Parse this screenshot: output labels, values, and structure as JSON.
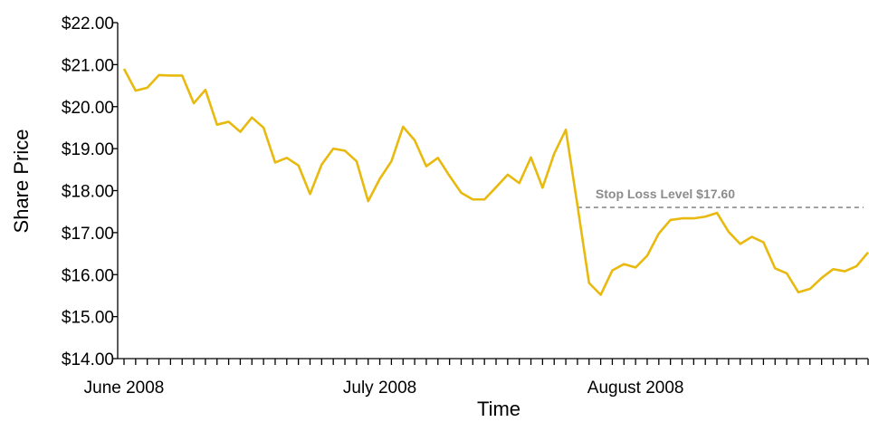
{
  "chart_data": {
    "type": "line",
    "xlabel": "Time",
    "ylabel": "Share Price",
    "ylim": [
      14,
      22
    ],
    "y_ticks": [
      "$14.00",
      "$15.00",
      "$16.00",
      "$17.00",
      "$18.00",
      "$19.00",
      "$20.00",
      "$21.00",
      "$22.00"
    ],
    "x_month_labels": [
      {
        "label": "June 2008",
        "index": 0
      },
      {
        "label": "July 2008",
        "index": 22
      },
      {
        "label": "August 2008",
        "index": 44
      }
    ],
    "grid": false,
    "legend": "none",
    "series": [
      {
        "values": [
          20.9,
          20.38,
          20.45,
          20.75,
          20.74,
          20.74,
          20.08,
          20.4,
          19.57,
          19.64,
          19.4,
          19.74,
          19.5,
          18.67,
          18.78,
          18.6,
          17.92,
          18.62,
          19.0,
          18.95,
          18.7,
          17.75,
          18.28,
          18.7,
          19.52,
          19.2,
          18.58,
          18.78,
          18.35,
          17.95,
          17.79,
          17.79,
          18.08,
          18.38,
          18.18,
          18.79,
          18.07,
          18.88,
          19.45,
          17.65,
          15.8,
          15.52,
          16.1,
          16.25,
          16.17,
          16.45,
          16.98,
          17.3,
          17.34,
          17.34,
          17.38,
          17.47,
          17.02,
          16.73,
          16.9,
          16.77,
          16.15,
          16.03,
          15.58,
          15.66,
          15.92,
          16.13,
          16.08,
          16.2,
          16.53
        ],
        "color": "#E8B90E"
      }
    ],
    "annotations": [
      {
        "label": "Stop Loss Level $17.60",
        "value": 17.6,
        "start_index": 39,
        "color": "#8C8C8C"
      }
    ]
  }
}
